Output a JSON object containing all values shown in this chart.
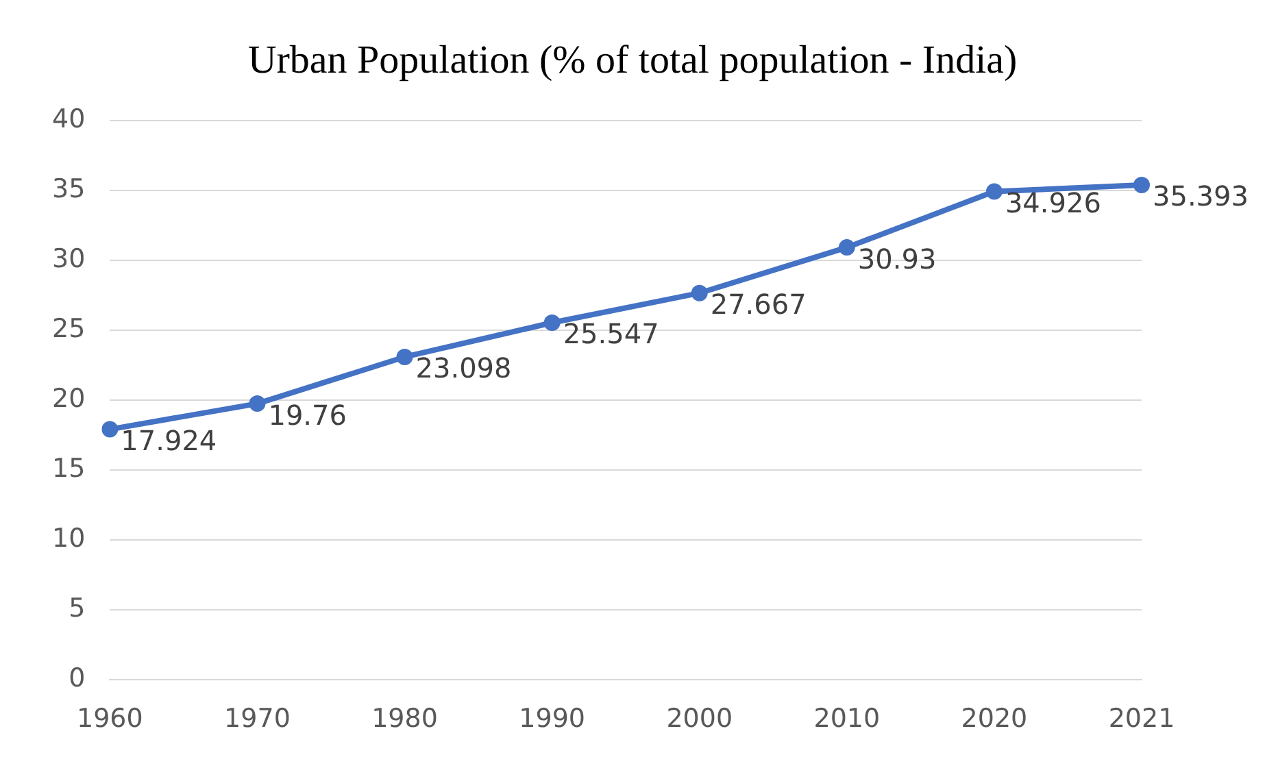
{
  "chart_data": {
    "type": "line",
    "title": "Urban Population (% of total population - India)",
    "categories": [
      "1960",
      "1970",
      "1980",
      "1990",
      "2000",
      "2010",
      "2020",
      "2021"
    ],
    "series": [
      {
        "color": "#4472c4",
        "values": [
          17.924,
          19.76,
          23.098,
          25.547,
          27.667,
          30.93,
          34.926,
          35.393
        ]
      }
    ],
    "ylim": [
      0,
      40
    ],
    "yticks": [
      0,
      5,
      10,
      15,
      20,
      25,
      30,
      35,
      40
    ],
    "grid": "y",
    "legend": false,
    "marker": "circle",
    "line_style": "solid",
    "data_labels": true
  }
}
